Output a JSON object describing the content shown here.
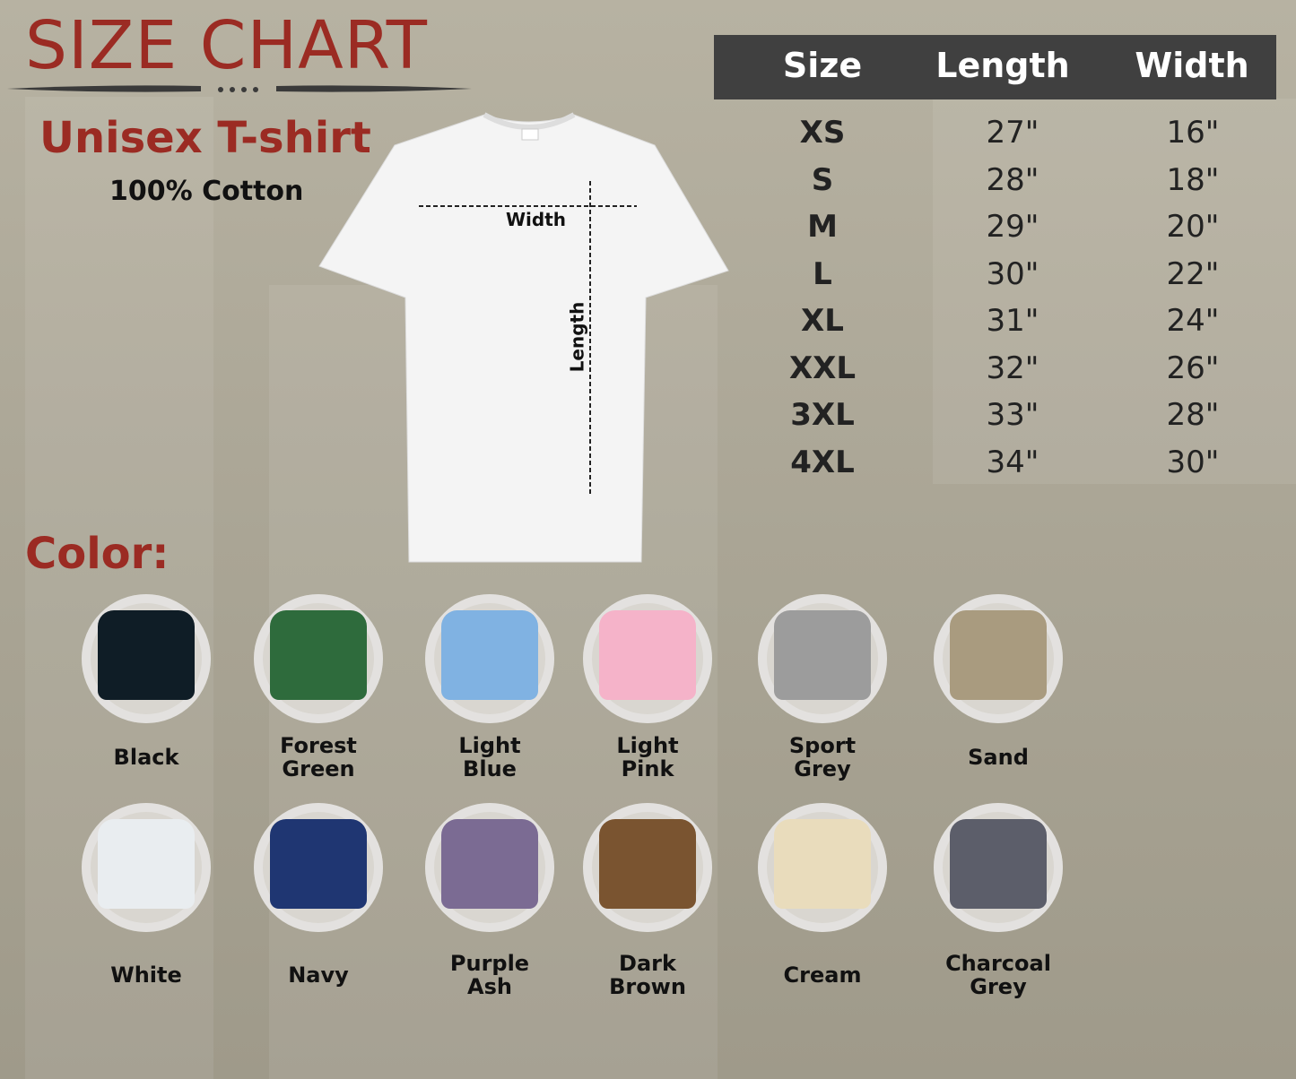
{
  "header": {
    "title": "SIZE CHART",
    "subtitle": "Unisex T-shirt",
    "material": "100% Cotton"
  },
  "diagram": {
    "width_label": "Width",
    "length_label": "Length"
  },
  "size_table": {
    "columns": [
      "Size",
      "Length",
      "Width"
    ],
    "rows": [
      {
        "size": "XS",
        "length": "27\"",
        "width": "16\""
      },
      {
        "size": "S",
        "length": "28\"",
        "width": "18\""
      },
      {
        "size": "M",
        "length": "29\"",
        "width": "20\""
      },
      {
        "size": "L",
        "length": "30\"",
        "width": "22\""
      },
      {
        "size": "XL",
        "length": "31\"",
        "width": "24\""
      },
      {
        "size": "XXL",
        "length": "32\"",
        "width": "26\""
      },
      {
        "size": "3XL",
        "length": "33\"",
        "width": "28\""
      },
      {
        "size": "4XL",
        "length": "34\"",
        "width": "30\""
      }
    ]
  },
  "colors": {
    "heading": "Color:",
    "items": [
      {
        "name": [
          "Black"
        ],
        "hex": "#0f1d26"
      },
      {
        "name": [
          "Forest",
          "Green"
        ],
        "hex": "#2e6b3c"
      },
      {
        "name": [
          "Light",
          "Blue"
        ],
        "hex": "#80b2e2"
      },
      {
        "name": [
          "Light",
          "Pink"
        ],
        "hex": "#f5b3c9"
      },
      {
        "name": [
          "Sport",
          "Grey"
        ],
        "hex": "#9c9c9c"
      },
      {
        "name": [
          "Sand"
        ],
        "hex": "#a99b7f"
      },
      {
        "name": [
          "White"
        ],
        "hex": "#e9edf0"
      },
      {
        "name": [
          "Navy"
        ],
        "hex": "#1f3672"
      },
      {
        "name": [
          "Purple",
          "Ash"
        ],
        "hex": "#7b6b93"
      },
      {
        "name": [
          "Dark",
          "Brown"
        ],
        "hex": "#7a5430"
      },
      {
        "name": [
          "Cream"
        ],
        "hex": "#e9dcbc"
      },
      {
        "name": [
          "Charcoal",
          "Grey"
        ],
        "hex": "#5c5e6a"
      }
    ]
  },
  "theme": {
    "accent": "#9b2b23",
    "table_header_bg": "#404040"
  }
}
